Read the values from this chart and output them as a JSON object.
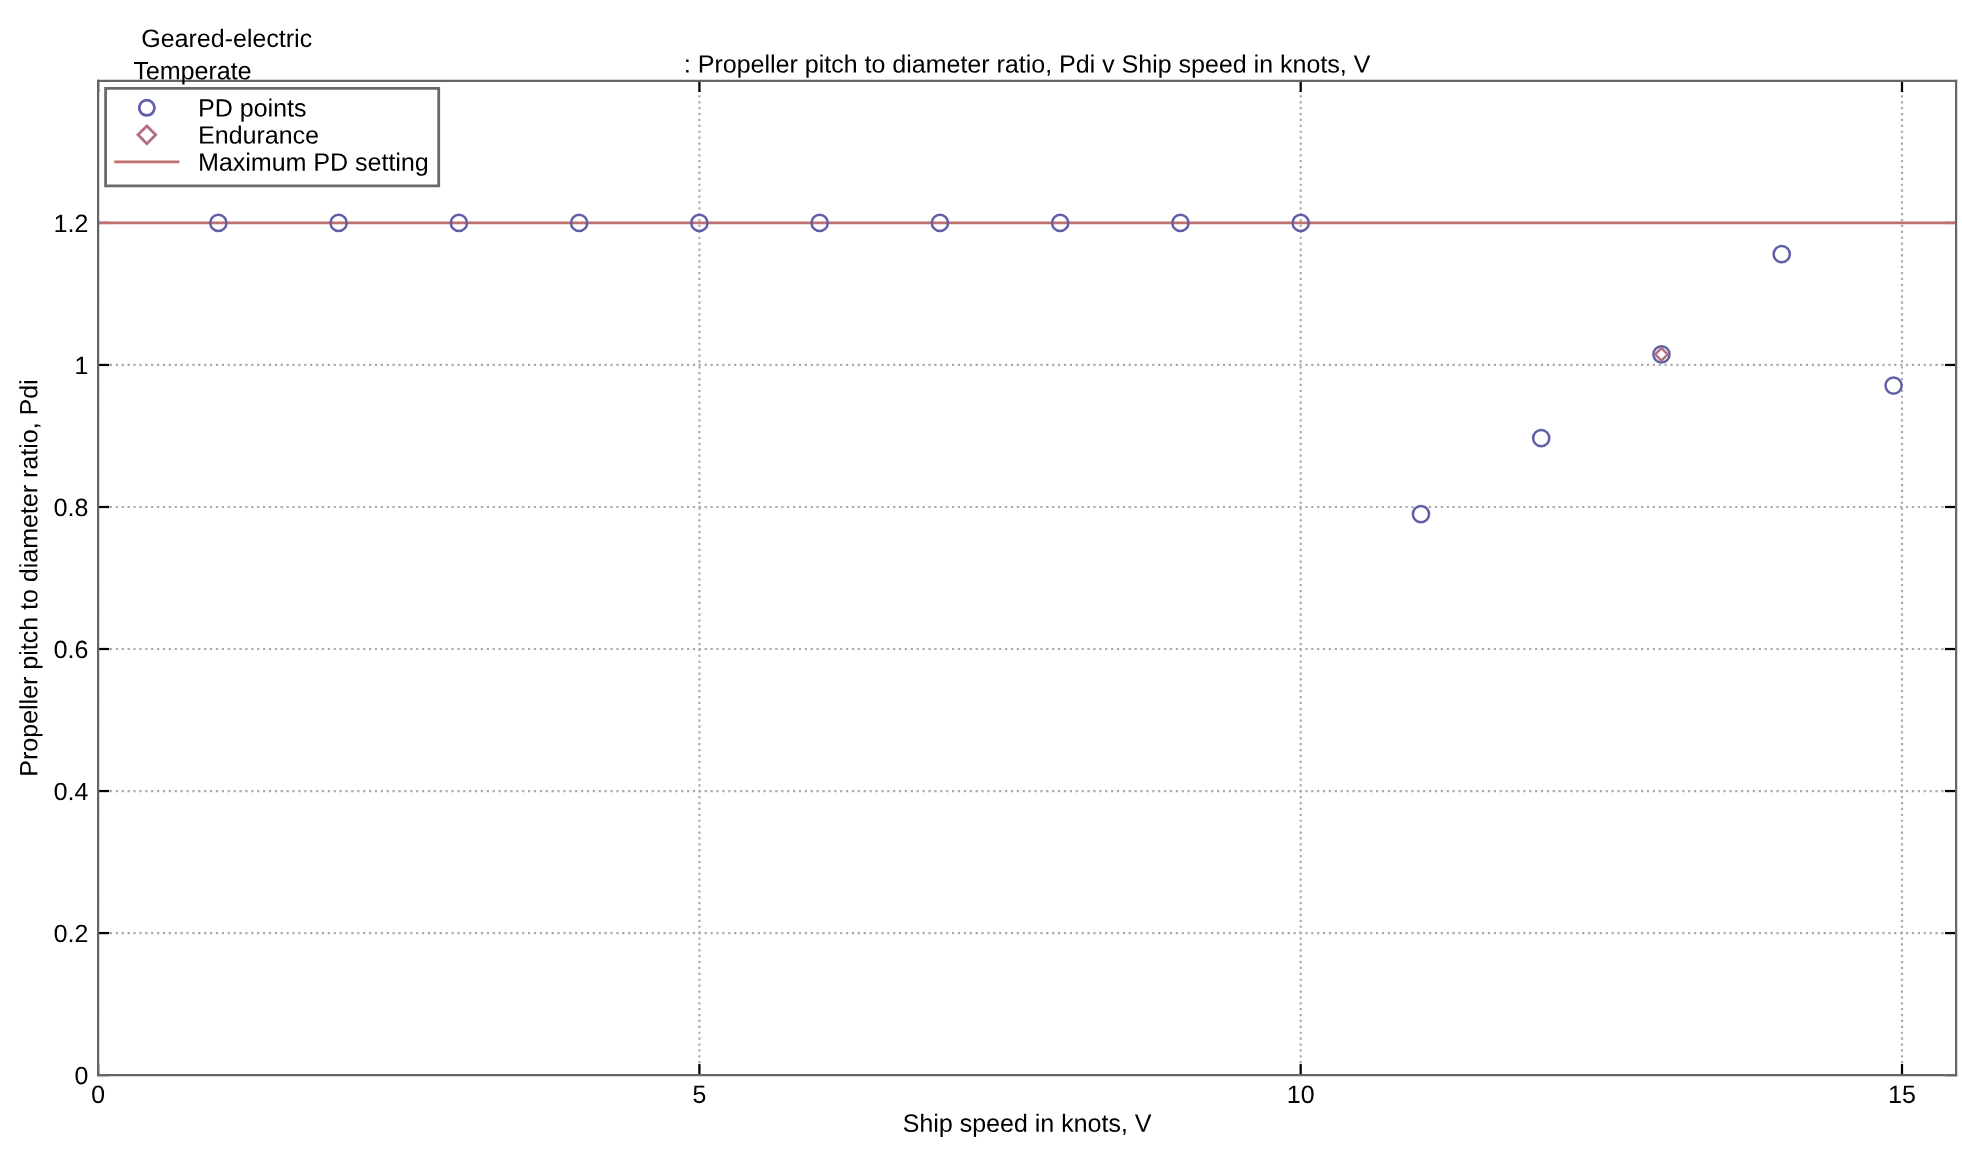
{
  "chart_data": {
    "type": "scatter",
    "title": ": Propeller pitch to diameter ratio, Pdi v Ship speed in knots, V",
    "subtitle": "Geared-electric",
    "annotations": [
      "Temperate"
    ],
    "xlabel": "Ship speed in knots, V",
    "ylabel": "Propeller pitch to diameter ratio, Pdi",
    "xlim": [
      0,
      15.45
    ],
    "ylim": [
      0,
      1.4
    ],
    "xticks": [
      0,
      5,
      10,
      15
    ],
    "yticks": [
      0,
      0.2,
      0.4,
      0.6,
      0.8,
      1,
      1.2
    ],
    "grid": true,
    "legend": "top left",
    "series": [
      {
        "name": "PD points",
        "color": "#6060a8",
        "marker": "circle",
        "x": [
          1,
          2,
          3,
          4,
          5,
          6,
          7,
          8,
          9,
          10,
          11,
          12,
          13,
          14,
          14.93
        ],
        "values": [
          1.2,
          1.2,
          1.2,
          1.2,
          1.2,
          1.2,
          1.2,
          1.2,
          1.2,
          1.2,
          0.79,
          0.897,
          1.015,
          1.156,
          0.971
        ]
      },
      {
        "name": "Endurance",
        "color": "#b07080",
        "marker": "diamond",
        "x": [
          13
        ],
        "values": [
          1.015
        ]
      }
    ],
    "ref_lines": [
      {
        "axis": "y",
        "value": 1.2,
        "label": "Maximum PD setting",
        "color": "#c07070",
        "line_style": "solid"
      }
    ]
  }
}
